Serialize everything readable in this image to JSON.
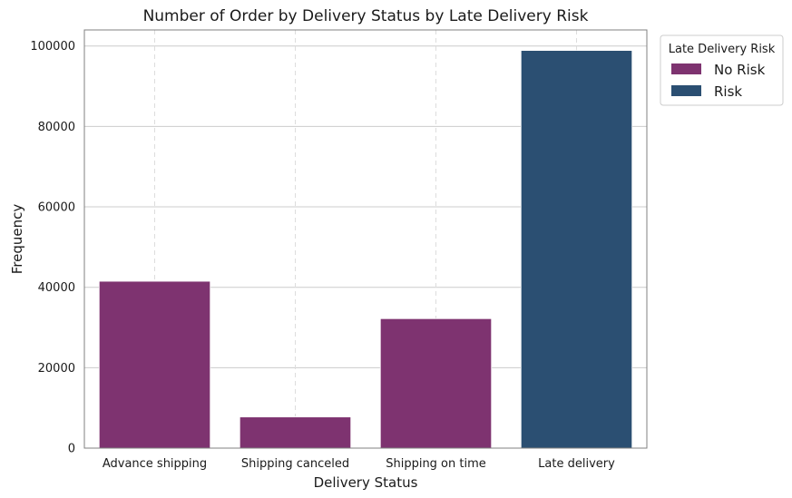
{
  "chart_data": {
    "type": "bar",
    "title": "Number of Order by Delivery Status by Late Delivery Risk",
    "xlabel": "Delivery Status",
    "ylabel": "Frequency",
    "categories": [
      "Advance shipping",
      "Shipping canceled",
      "Shipping on time",
      "Late delivery"
    ],
    "series": [
      {
        "name": "No Risk",
        "color": "#7e3370",
        "values": [
          41500,
          7750,
          32200,
          null
        ]
      },
      {
        "name": "Risk",
        "color": "#2b4f72",
        "values": [
          null,
          null,
          null,
          98900
        ]
      }
    ],
    "ylim": [
      0,
      104000
    ],
    "yticks": [
      0,
      20000,
      40000,
      60000,
      80000,
      100000
    ],
    "grid": true,
    "legend": {
      "title": "Late Delivery Risk",
      "placement": "outside-top-right"
    }
  }
}
